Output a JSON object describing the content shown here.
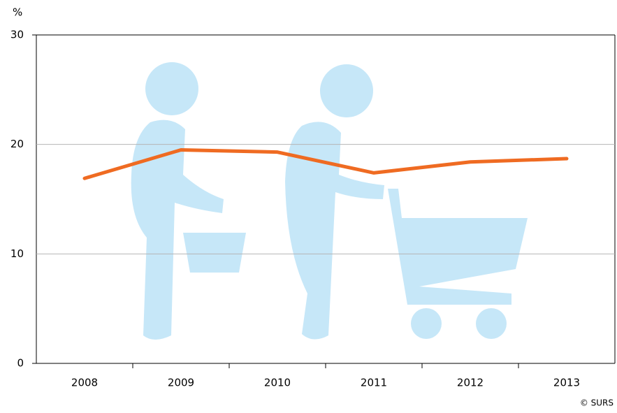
{
  "chart_data": {
    "type": "line",
    "y_unit_label": "%",
    "credit": "© SURS",
    "categories": [
      "2008",
      "2009",
      "2010",
      "2011",
      "2012",
      "2013"
    ],
    "series": [
      {
        "color": "#ef6b22",
        "values": [
          16.9,
          19.5,
          19.3,
          17.4,
          18.4,
          18.7
        ]
      }
    ],
    "ylim": [
      0,
      30
    ],
    "yticks": [
      0,
      10,
      20,
      30
    ],
    "grid": true
  }
}
